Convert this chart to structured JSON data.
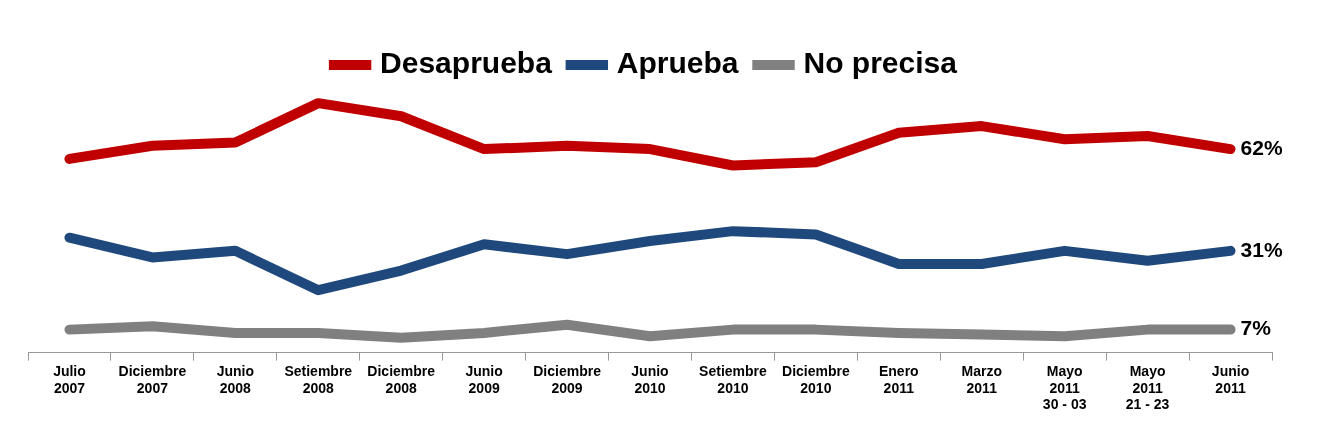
{
  "chart_data": {
    "type": "line",
    "categories": [
      "Julio\n2007",
      "Diciembre\n2007",
      "Junio\n2008",
      "Setiembre\n2008",
      "Diciembre\n2008",
      "Junio\n2009",
      "Diciembre\n2009",
      "Junio\n2010",
      "Setiembre\n2010",
      "Diciembre\n2010",
      "Enero\n2011",
      "Marzo\n2011",
      "Mayo\n2011\n30 - 03",
      "Mayo\n2011\n21 - 23",
      "Junio\n2011"
    ],
    "series": [
      {
        "name": "Desaprueba",
        "color": "#c00000",
        "values": [
          59,
          63,
          64,
          76,
          72,
          62,
          63,
          62,
          57,
          58,
          67,
          69,
          65,
          66,
          62
        ],
        "value_labels": [
          null,
          null,
          null,
          null,
          null,
          null,
          null,
          null,
          null,
          null,
          null,
          null,
          null,
          null,
          "62%"
        ]
      },
      {
        "name": "Aprueba",
        "color": "#1f497d",
        "values": [
          35,
          29,
          31,
          19,
          25,
          33,
          30,
          34,
          37,
          36,
          27,
          27,
          31,
          28,
          31
        ],
        "value_labels": [
          null,
          null,
          null,
          null,
          null,
          null,
          null,
          null,
          null,
          null,
          null,
          null,
          null,
          null,
          "31%"
        ]
      },
      {
        "name": "No precisa",
        "color": "#808080",
        "values": [
          7,
          8,
          6,
          6,
          4.5,
          6,
          8.5,
          5,
          7,
          7,
          6,
          5.5,
          5,
          7,
          7
        ],
        "value_labels": [
          null,
          null,
          null,
          null,
          null,
          null,
          null,
          null,
          null,
          null,
          null,
          null,
          null,
          null,
          "7%"
        ]
      }
    ],
    "tick_labels": "x",
    "grid": false,
    "legend": "top",
    "marker": "none",
    "line_style": "solid"
  }
}
